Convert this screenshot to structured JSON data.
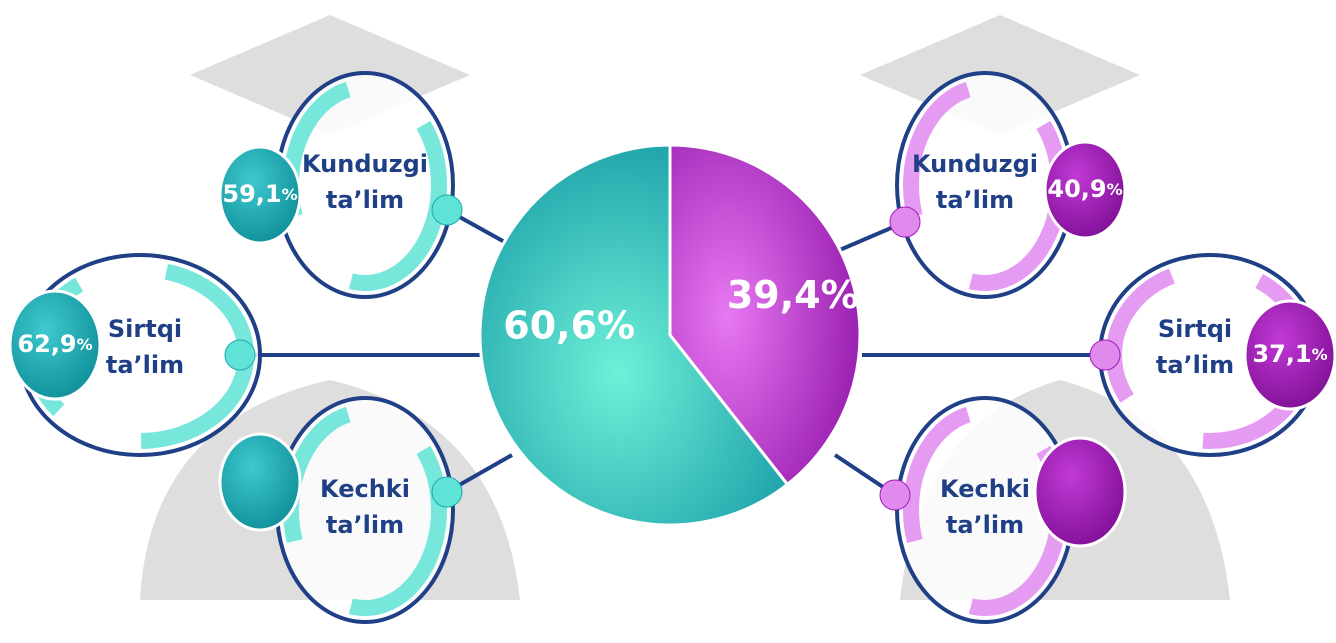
{
  "chart_data": {
    "type": "pie",
    "categories": [
      null,
      null
    ],
    "values": [
      60.6,
      39.4
    ],
    "value_labels": [
      "60,6%",
      "39,4%"
    ],
    "colors": [
      "#1aa8b0",
      "#a21cba"
    ]
  },
  "callouts": {
    "left": [
      {
        "label": [
          "Kunduzgi",
          "ta’lim"
        ],
        "value": "59,1",
        "unit": "%"
      },
      {
        "label": [
          "Sirtqi",
          "ta’lim"
        ],
        "value": "62,9",
        "unit": "%"
      },
      {
        "label": [
          "Kechki",
          "ta’lim"
        ]
      }
    ],
    "right": [
      {
        "label": [
          "Kunduzgi",
          "ta’lim"
        ],
        "value": "40,9",
        "unit": "%"
      },
      {
        "label": [
          "Sirtqi",
          "ta’lim"
        ],
        "value": "37,1",
        "unit": "%"
      },
      {
        "label": [
          "Kechki",
          "ta’lim"
        ]
      }
    ]
  }
}
